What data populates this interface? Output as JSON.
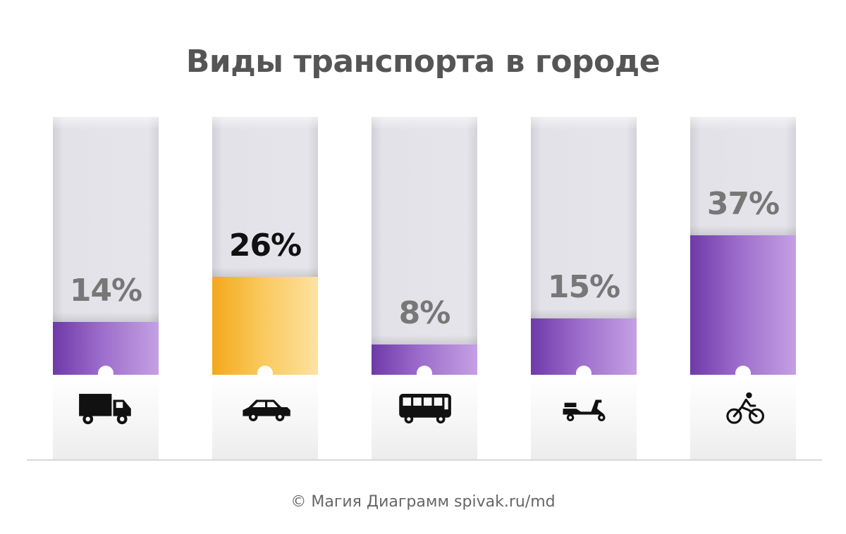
{
  "chart_data": {
    "type": "bar",
    "title": "Виды транспорта в городе",
    "categories": [
      "truck",
      "car",
      "bus",
      "scooter",
      "bicycle"
    ],
    "values": [
      14,
      26,
      8,
      15,
      37
    ],
    "value_labels": [
      "14%",
      "26%",
      "8%",
      "15%",
      "37%"
    ],
    "icons": [
      "truck-icon",
      "car-icon",
      "bus-icon",
      "scooter-icon",
      "bicycle-icon"
    ],
    "highlight_index": 1,
    "ylim": [
      0,
      100
    ],
    "unit": "%",
    "colors": {
      "default": "#9c6ccb",
      "highlight": "#f9c85a"
    },
    "xlabel": "",
    "ylabel": ""
  },
  "footer": {
    "credit": "© Магия Диаграмм spivak.ru/md"
  }
}
